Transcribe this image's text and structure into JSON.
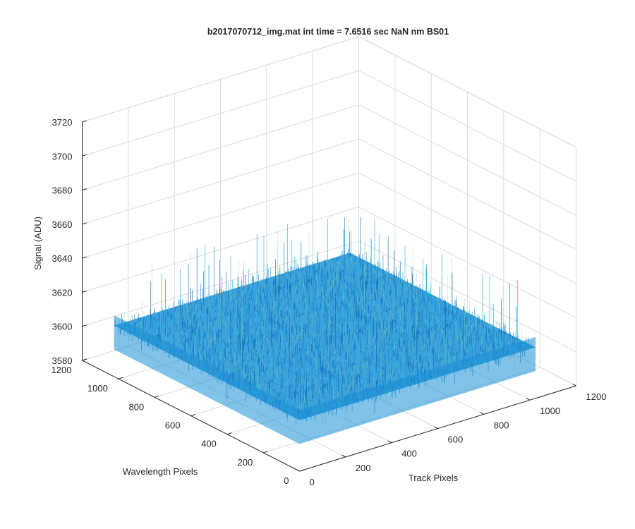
{
  "window": {
    "background": "#ffffff"
  },
  "chart_data": {
    "type": "surface",
    "title": "b2017070712_img.mat int time = 7.6516 sec  NaN nm BS01",
    "xlabel": "Track Pixels",
    "ylabel": "Wavelength Pixels",
    "zlabel": "Signal (ADU)",
    "x_ticks": [
      0,
      200,
      400,
      600,
      800,
      1000,
      1200
    ],
    "y_ticks": [
      0,
      200,
      400,
      600,
      800,
      1000,
      1200
    ],
    "z_ticks": [
      3580,
      3600,
      3620,
      3640,
      3660,
      3680,
      3700,
      3720
    ],
    "xlim": [
      0,
      1200
    ],
    "ylim": [
      0,
      1200
    ],
    "zlim": [
      3580,
      3720
    ],
    "grid": true,
    "colormap": "parula",
    "colors": {
      "axis": "#262626",
      "grid": "#dcdcdc",
      "surface_base": "#1a8fd6",
      "surface_light": "#2fb3e0",
      "surface_dark": "#0e6fbf",
      "surface_highlight": "#7cc9a0"
    },
    "surface": {
      "x_range": [
        0,
        1024
      ],
      "y_range": [
        0,
        1024
      ],
      "mean_signal": 3610,
      "noise_min": 3580,
      "noise_max": 3665
    }
  }
}
